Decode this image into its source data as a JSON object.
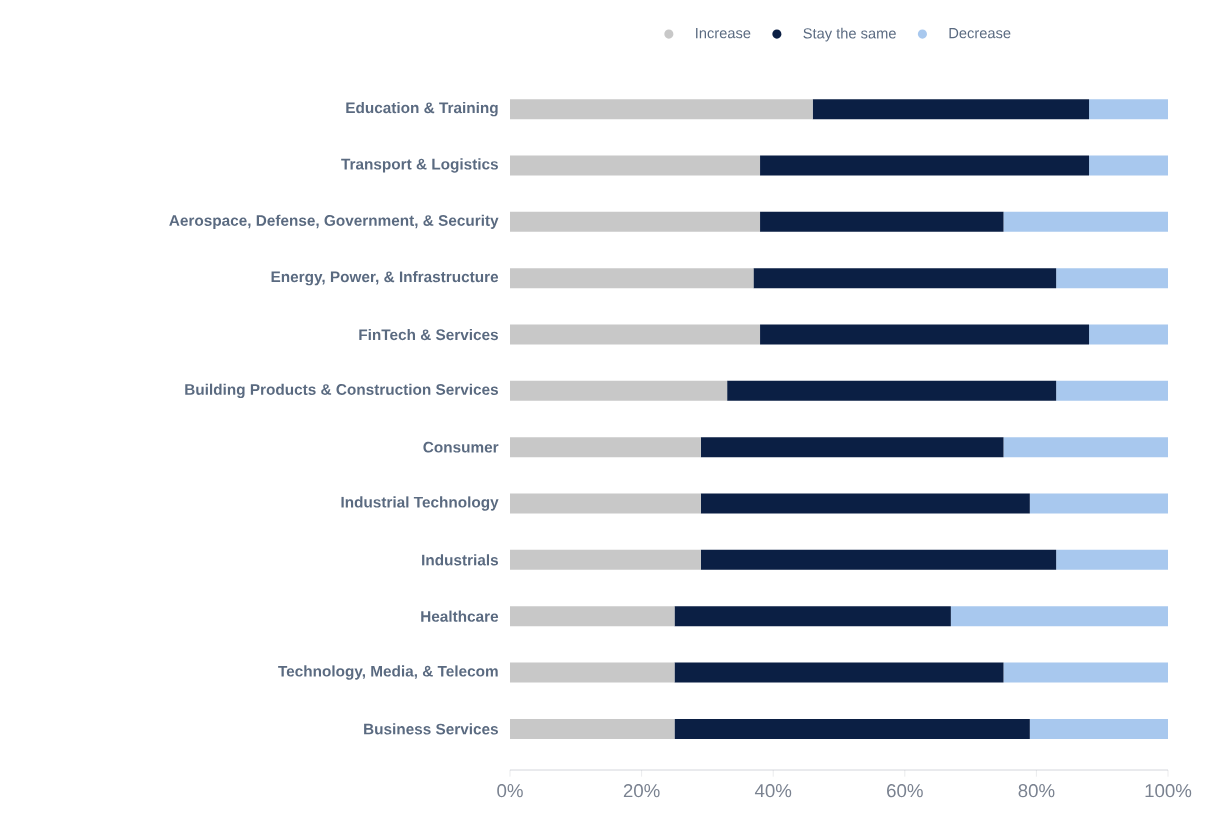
{
  "chart_data": {
    "type": "bar",
    "orientation": "horizontal",
    "stacked": true,
    "legend": "top",
    "grid": false,
    "categories": [
      "Education & Training",
      "Transport & Logistics",
      "Aerospace, Defense, Government, & Security",
      "Energy, Power, & Infrastructure",
      "FinTech & Services",
      "Building Products & Construction Services",
      "Consumer",
      "Industrial Technology",
      "Industrials",
      "Healthcare",
      "Technology, Media, & Telecom",
      "Business Services"
    ],
    "series": [
      {
        "name": "Increase",
        "color": "#c8c8c8",
        "values": [
          46,
          38,
          38,
          37,
          38,
          33,
          29,
          29,
          29,
          25,
          25,
          25
        ]
      },
      {
        "name": "Stay the same",
        "color": "#0b1f44",
        "values": [
          42,
          50,
          37,
          46,
          50,
          50,
          46,
          50,
          54,
          42,
          50,
          54
        ]
      },
      {
        "name": "Decrease",
        "color": "#a8c8ee",
        "values": [
          12,
          12,
          25,
          17,
          12,
          17,
          25,
          21,
          17,
          33,
          25,
          21
        ]
      }
    ],
    "xlim": [
      0,
      100
    ],
    "xticks": [
      {
        "value": 0,
        "label": "0%"
      },
      {
        "value": 20,
        "label": "20%"
      },
      {
        "value": 40,
        "label": "40%"
      },
      {
        "value": 60,
        "label": "60%"
      },
      {
        "value": 80,
        "label": "80%"
      },
      {
        "value": 100,
        "label": "100%"
      }
    ]
  }
}
